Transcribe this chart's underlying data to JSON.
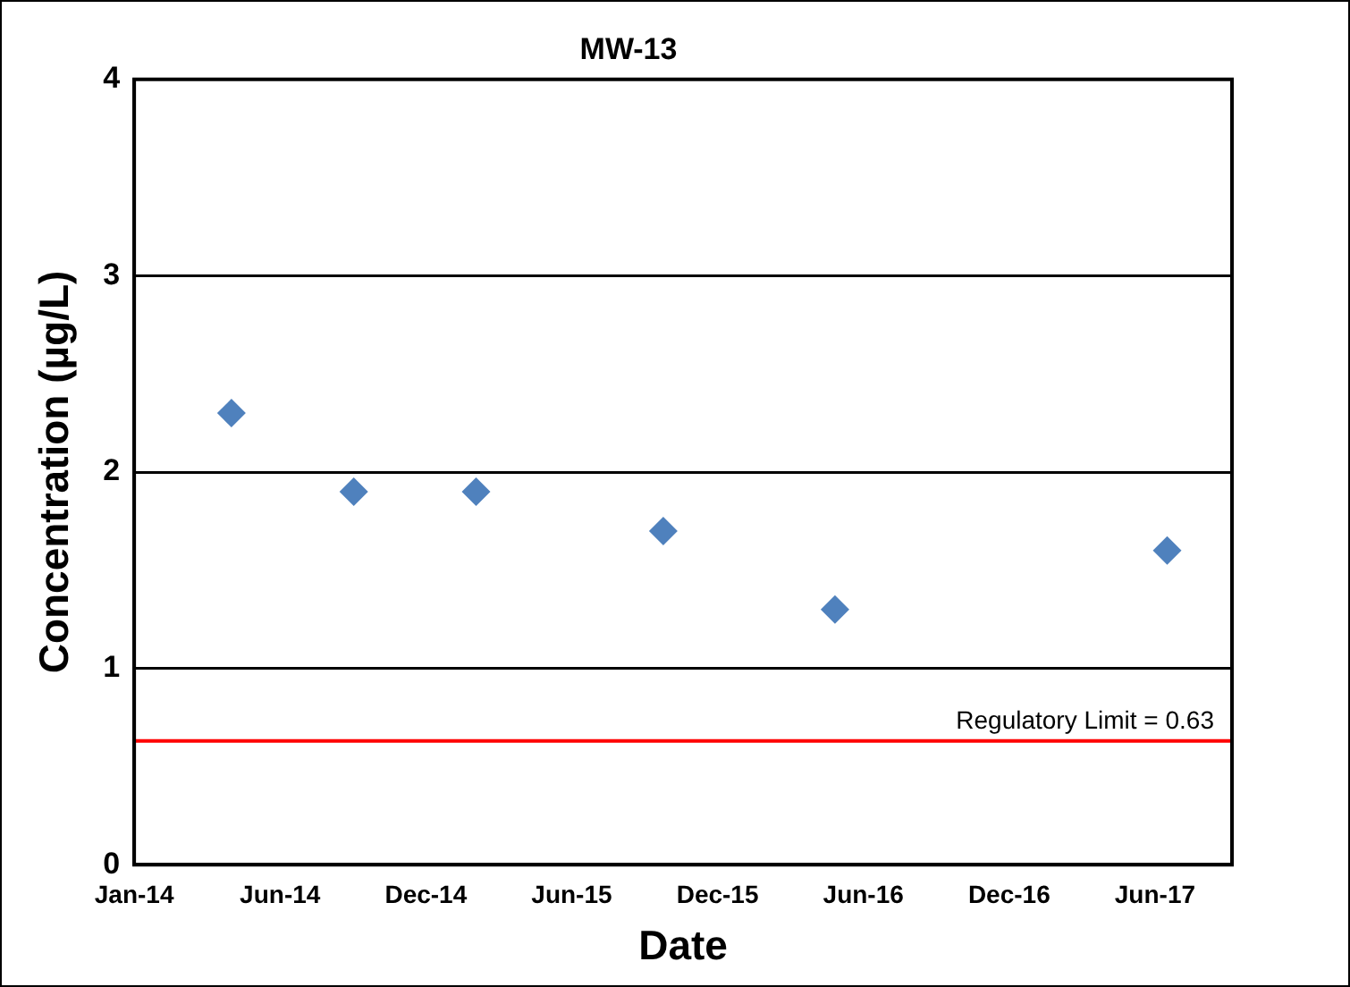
{
  "chart_data": {
    "type": "scatter",
    "title": "MW-13",
    "xlabel": "Date",
    "ylabel": "Concentration (µg/L)",
    "x": [
      "2014-05-01",
      "2014-09-29",
      "2015-02-27",
      "2015-10-16",
      "2016-05-15",
      "2017-06-29"
    ],
    "series": [
      {
        "color": "#4f81bd",
        "values": [
          2.3,
          1.9,
          1.9,
          1.7,
          1.3,
          1.6
        ]
      }
    ],
    "xlim": [
      "2014-01-01",
      "2017-09-17"
    ],
    "xticks": [
      {
        "value": "2014-01-01",
        "label": "Jan-14"
      },
      {
        "value": "2014-06-30",
        "label": "Jun-14"
      },
      {
        "value": "2014-12-27",
        "label": "Dec-14"
      },
      {
        "value": "2015-06-25",
        "label": "Jun-15"
      },
      {
        "value": "2015-12-22",
        "label": "Dec-15"
      },
      {
        "value": "2016-06-19",
        "label": "Jun-16"
      },
      {
        "value": "2016-12-16",
        "label": "Dec-16"
      },
      {
        "value": "2017-06-14",
        "label": "Jun-17"
      }
    ],
    "ylim": [
      0,
      4
    ],
    "yticks": [
      0,
      1,
      2,
      3,
      4
    ],
    "ref_lines": [
      {
        "axis": "y",
        "value": 0.63,
        "label": "Regulatory Limit = 0.63",
        "color": "#ff0000"
      }
    ],
    "grid": "y",
    "legend": false,
    "marker": "diamond"
  }
}
